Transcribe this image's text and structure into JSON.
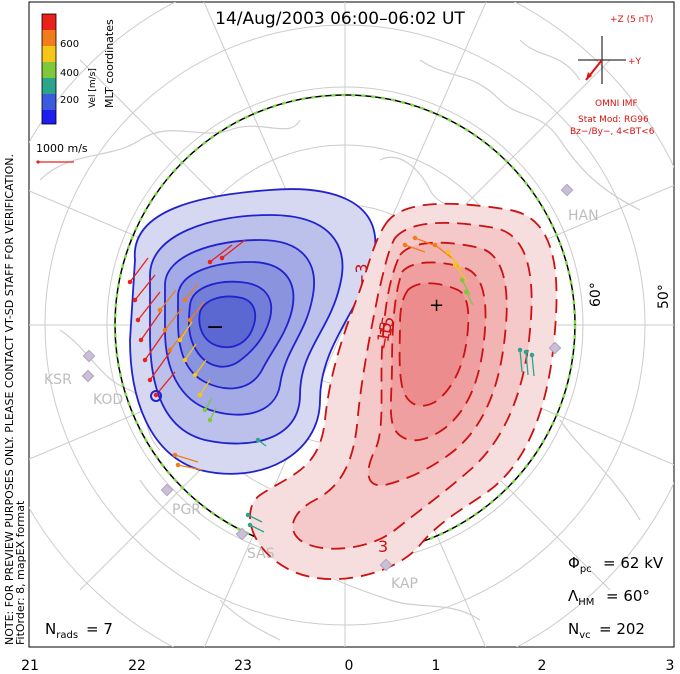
{
  "title": "14/Aug/2003 06:00–06:02 UT",
  "coord_system": "MLT coordinates",
  "legend": {
    "label": "Vel [m/s]",
    "ticks": [
      "600",
      "400",
      "200"
    ],
    "colors": [
      "#e8221a",
      "#f07d1a",
      "#f5c518",
      "#7ec83a",
      "#2aa58c",
      "#3b5bdc",
      "#1e1ef0"
    ],
    "scale_label": "1000 m/s"
  },
  "imf": {
    "z_label": "+Z (5 nT)",
    "y_label": "+Y",
    "source": "OMNI IMF",
    "stat_mod": "Stat Mod: RG96",
    "conditions": "Bz−/By−, 4<BT<6"
  },
  "note": "NOTE: FOR PREVIEW PURPOSES ONLY. PLEASE CONTACT VT-SD STAFF FOR VERIFICATION.",
  "fit_order": "FitOrder: 8, mapEX format",
  "stats": {
    "phi_pc": "= 62 kV",
    "lambda_hm": "= 60°",
    "n_vc": "= 202",
    "n_rads": "= 7"
  },
  "latitude_labels": [
    "60°",
    "50°"
  ],
  "mlt_ticks": [
    "21",
    "22",
    "23",
    "0",
    "1",
    "2",
    "3"
  ],
  "radars": [
    "HAN",
    "KSR",
    "KOD",
    "PGR",
    "SAS",
    "KAP"
  ],
  "contour_labels": [
    "−3",
    "−15",
    "15",
    "3"
  ],
  "min_marker": "−",
  "max_marker": "+",
  "colors": {
    "negative_cell": "#2222cc",
    "positive_cell": "#cc1111",
    "map_lines": "#c8c8c8",
    "hm_boundary": "#7ed84a"
  }
}
